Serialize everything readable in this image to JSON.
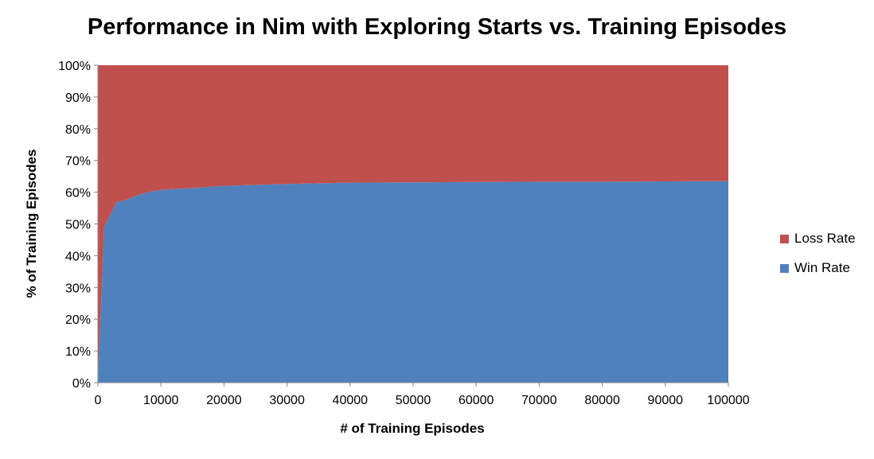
{
  "chart_data": {
    "type": "area",
    "stacked": true,
    "percent": true,
    "title": "Performance in Nim with Exploring Starts vs. Training Episodes",
    "xlabel": "# of Training Episodes",
    "ylabel": "% of Training Episodes",
    "xlim": [
      0,
      100000
    ],
    "ylim": [
      0,
      100
    ],
    "x_ticks": [
      0,
      10000,
      20000,
      30000,
      40000,
      50000,
      60000,
      70000,
      80000,
      90000,
      100000
    ],
    "y_ticks": [
      0,
      10,
      20,
      30,
      40,
      50,
      60,
      70,
      80,
      90,
      100
    ],
    "y_tick_labels": [
      "0%",
      "10%",
      "20%",
      "30%",
      "40%",
      "50%",
      "60%",
      "70%",
      "80%",
      "90%",
      "100%"
    ],
    "legend_position": "right",
    "x": [
      0,
      1000,
      2000,
      3000,
      4000,
      5000,
      6000,
      7000,
      8000,
      10000,
      12000,
      15000,
      20000,
      30000,
      40000,
      50000,
      60000,
      70000,
      80000,
      90000,
      100000
    ],
    "series": [
      {
        "name": "Win Rate",
        "color": "#4f81bd",
        "values": [
          0,
          49,
          53,
          57,
          57.3,
          58,
          58.8,
          59.5,
          60,
          60.7,
          61,
          61.3,
          62,
          62.6,
          63,
          63.1,
          63.2,
          63.3,
          63.3,
          63.4,
          63.5
        ]
      },
      {
        "name": "Loss Rate",
        "color": "#c0504d",
        "values": [
          100,
          51,
          47,
          43,
          42.7,
          42,
          41.2,
          40.5,
          40,
          39.3,
          39,
          38.7,
          38,
          37.4,
          37,
          36.9,
          36.8,
          36.7,
          36.7,
          36.6,
          36.5
        ]
      }
    ]
  }
}
